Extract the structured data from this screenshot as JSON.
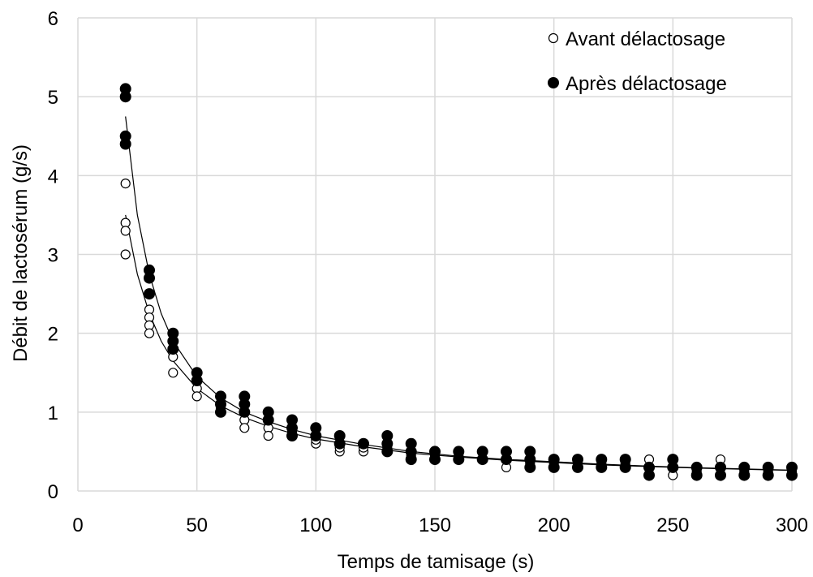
{
  "chart_data": {
    "type": "scatter",
    "title": "",
    "xlabel": "Temps de tamisage (s)",
    "ylabel": "Débit de lactosérum (g/s)",
    "xlim": [
      0,
      300
    ],
    "ylim": [
      0,
      6
    ],
    "xticks": [
      0,
      50,
      100,
      150,
      200,
      250,
      300
    ],
    "yticks": [
      0,
      1,
      2,
      3,
      4,
      5,
      6
    ],
    "x_tick_labels": [
      "0",
      "50",
      "100",
      "150",
      "200",
      "250",
      "300"
    ],
    "y_tick_labels": [
      "0",
      "1",
      "2",
      "3",
      "4",
      "5",
      "6"
    ],
    "grid": true,
    "legend_position": "top-right",
    "series": [
      {
        "name": "Avant délactosage",
        "marker": "open-circle",
        "color": "#000000",
        "points": [
          [
            20,
            3.9
          ],
          [
            20,
            3.4
          ],
          [
            20,
            3.3
          ],
          [
            20,
            3.0
          ],
          [
            30,
            2.3
          ],
          [
            30,
            2.2
          ],
          [
            30,
            2.1
          ],
          [
            30,
            2.0
          ],
          [
            40,
            1.8
          ],
          [
            40,
            1.7
          ],
          [
            40,
            1.5
          ],
          [
            50,
            1.3
          ],
          [
            50,
            1.2
          ],
          [
            60,
            1.0
          ],
          [
            60,
            1.05
          ],
          [
            70,
            0.9
          ],
          [
            70,
            0.8
          ],
          [
            80,
            0.8
          ],
          [
            80,
            0.7
          ],
          [
            90,
            0.7
          ],
          [
            90,
            0.75
          ],
          [
            100,
            0.6
          ],
          [
            100,
            0.65
          ],
          [
            110,
            0.5
          ],
          [
            110,
            0.55
          ],
          [
            120,
            0.5
          ],
          [
            120,
            0.55
          ],
          [
            130,
            0.5
          ],
          [
            130,
            0.55
          ],
          [
            140,
            0.45
          ],
          [
            140,
            0.5
          ],
          [
            150,
            0.4
          ],
          [
            150,
            0.45
          ],
          [
            160,
            0.4
          ],
          [
            160,
            0.45
          ],
          [
            170,
            0.4
          ],
          [
            180,
            0.3
          ],
          [
            180,
            0.4
          ],
          [
            190,
            0.35
          ],
          [
            190,
            0.4
          ],
          [
            200,
            0.35
          ],
          [
            200,
            0.4
          ],
          [
            210,
            0.3
          ],
          [
            210,
            0.35
          ],
          [
            220,
            0.3
          ],
          [
            220,
            0.35
          ],
          [
            230,
            0.3
          ],
          [
            230,
            0.35
          ],
          [
            240,
            0.4
          ],
          [
            240,
            0.3
          ],
          [
            250,
            0.2
          ],
          [
            250,
            0.3
          ],
          [
            260,
            0.25
          ],
          [
            260,
            0.3
          ],
          [
            270,
            0.4
          ],
          [
            270,
            0.3
          ],
          [
            280,
            0.25
          ],
          [
            280,
            0.3
          ],
          [
            290,
            0.25
          ],
          [
            290,
            0.3
          ],
          [
            300,
            0.25
          ],
          [
            300,
            0.3
          ]
        ],
        "fit": [
          [
            20,
            3.5
          ],
          [
            25,
            2.75
          ],
          [
            30,
            2.25
          ],
          [
            35,
            1.9
          ],
          [
            40,
            1.65
          ],
          [
            50,
            1.3
          ],
          [
            60,
            1.08
          ],
          [
            70,
            0.93
          ],
          [
            80,
            0.82
          ],
          [
            90,
            0.73
          ],
          [
            100,
            0.66
          ],
          [
            120,
            0.56
          ],
          [
            140,
            0.48
          ],
          [
            160,
            0.43
          ],
          [
            180,
            0.39
          ],
          [
            200,
            0.36
          ],
          [
            220,
            0.33
          ],
          [
            240,
            0.31
          ],
          [
            260,
            0.29
          ],
          [
            280,
            0.275
          ],
          [
            300,
            0.26
          ]
        ]
      },
      {
        "name": "Après délactosage",
        "marker": "filled-circle",
        "color": "#000000",
        "points": [
          [
            20,
            5.1
          ],
          [
            20,
            5.0
          ],
          [
            20,
            4.5
          ],
          [
            20,
            4.4
          ],
          [
            30,
            2.8
          ],
          [
            30,
            2.7
          ],
          [
            30,
            2.5
          ],
          [
            40,
            2.0
          ],
          [
            40,
            1.9
          ],
          [
            40,
            1.8
          ],
          [
            50,
            1.5
          ],
          [
            50,
            1.4
          ],
          [
            60,
            1.2
          ],
          [
            60,
            1.1
          ],
          [
            60,
            1.0
          ],
          [
            70,
            1.2
          ],
          [
            70,
            1.1
          ],
          [
            70,
            1.0
          ],
          [
            80,
            1.0
          ],
          [
            80,
            0.9
          ],
          [
            90,
            0.9
          ],
          [
            90,
            0.8
          ],
          [
            90,
            0.7
          ],
          [
            100,
            0.8
          ],
          [
            100,
            0.7
          ],
          [
            110,
            0.7
          ],
          [
            110,
            0.6
          ],
          [
            120,
            0.6
          ],
          [
            130,
            0.7
          ],
          [
            130,
            0.6
          ],
          [
            130,
            0.5
          ],
          [
            140,
            0.6
          ],
          [
            140,
            0.5
          ],
          [
            140,
            0.4
          ],
          [
            150,
            0.5
          ],
          [
            150,
            0.4
          ],
          [
            160,
            0.5
          ],
          [
            160,
            0.4
          ],
          [
            170,
            0.5
          ],
          [
            170,
            0.4
          ],
          [
            180,
            0.5
          ],
          [
            180,
            0.4
          ],
          [
            190,
            0.5
          ],
          [
            190,
            0.4
          ],
          [
            190,
            0.3
          ],
          [
            200,
            0.4
          ],
          [
            200,
            0.3
          ],
          [
            210,
            0.4
          ],
          [
            210,
            0.3
          ],
          [
            220,
            0.4
          ],
          [
            220,
            0.3
          ],
          [
            230,
            0.4
          ],
          [
            230,
            0.3
          ],
          [
            240,
            0.3
          ],
          [
            240,
            0.2
          ],
          [
            250,
            0.4
          ],
          [
            250,
            0.3
          ],
          [
            260,
            0.3
          ],
          [
            260,
            0.2
          ],
          [
            270,
            0.3
          ],
          [
            270,
            0.2
          ],
          [
            280,
            0.3
          ],
          [
            280,
            0.2
          ],
          [
            290,
            0.3
          ],
          [
            290,
            0.2
          ],
          [
            300,
            0.3
          ],
          [
            300,
            0.2
          ]
        ],
        "fit": [
          [
            20,
            4.75
          ],
          [
            25,
            3.5
          ],
          [
            30,
            2.75
          ],
          [
            35,
            2.25
          ],
          [
            40,
            1.9
          ],
          [
            50,
            1.45
          ],
          [
            60,
            1.18
          ],
          [
            70,
            1.0
          ],
          [
            80,
            0.88
          ],
          [
            90,
            0.78
          ],
          [
            100,
            0.7
          ],
          [
            120,
            0.59
          ],
          [
            140,
            0.5
          ],
          [
            160,
            0.44
          ],
          [
            180,
            0.4
          ],
          [
            200,
            0.37
          ],
          [
            220,
            0.34
          ],
          [
            240,
            0.315
          ],
          [
            260,
            0.295
          ],
          [
            280,
            0.28
          ],
          [
            300,
            0.265
          ]
        ]
      }
    ]
  }
}
